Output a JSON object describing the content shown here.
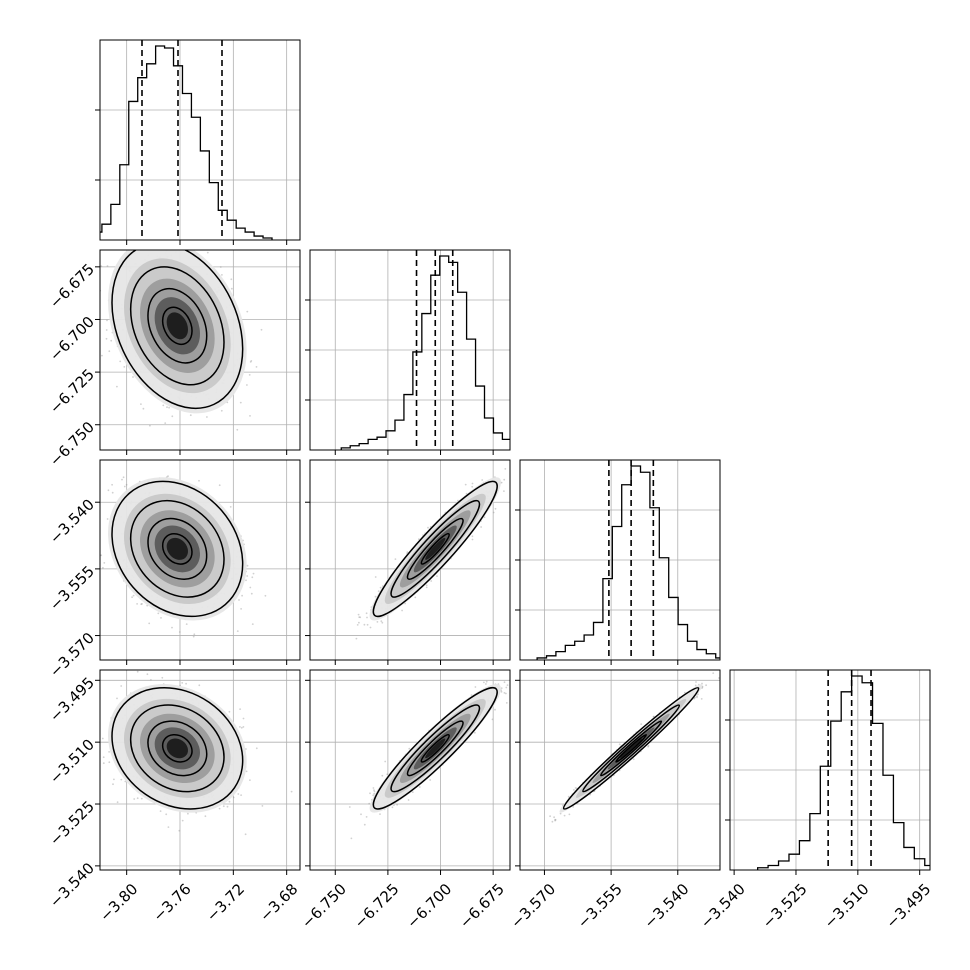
{
  "colors": {
    "ink": "#000000",
    "grid": "#b0b0b0",
    "points": "#9a9a9a"
  },
  "chart_data": {
    "type": "corner",
    "parameters": 4,
    "grid": true,
    "axes": [
      {
        "range": [
          -3.82,
          -3.67
        ],
        "ticks": [
          -3.8,
          -3.76,
          -3.72,
          -3.68
        ],
        "tick_labels": [
          "−3.80",
          "−3.76",
          "−3.72",
          "−3.68"
        ]
      },
      {
        "range": [
          -6.762,
          -6.667
        ],
        "ticks": [
          -6.75,
          -6.725,
          -6.7,
          -6.675
        ],
        "tick_labels": [
          "−6.750",
          "−6.725",
          "−6.700",
          "−6.675"
        ]
      },
      {
        "range": [
          -3.5755,
          -3.5305
        ],
        "ticks": [
          -3.57,
          -3.555,
          -3.54
        ],
        "tick_labels": [
          "−3.570",
          "−3.555",
          "−3.540"
        ]
      },
      {
        "range": [
          -3.541,
          -3.4925
        ],
        "ticks": [
          -3.54,
          -3.525,
          -3.51,
          -3.495
        ],
        "tick_labels": [
          "−3.540",
          "−3.525",
          "−3.510",
          "−3.495"
        ]
      }
    ],
    "histograms": [
      {
        "param": 0,
        "quantiles": [
          -3.7885,
          -3.7615,
          -3.7285
        ],
        "density_yticks": [
          0.3,
          0.65
        ],
        "counts": [
          2,
          4,
          8,
          18,
          38,
          70,
          82,
          89,
          98,
          97,
          88,
          74,
          62,
          45,
          29,
          15,
          10,
          6,
          4,
          2,
          1
        ]
      },
      {
        "param": 1,
        "quantiles": [
          -6.7114,
          -6.7025,
          -6.6942
        ],
        "density_yticks": [
          0.25,
          0.5,
          0.75
        ],
        "counts": [
          1,
          2,
          3,
          5,
          6,
          9,
          14,
          26,
          46,
          64,
          82,
          91,
          88,
          74,
          52,
          30,
          15,
          8,
          5,
          2,
          1
        ]
      },
      {
        "param": 2,
        "quantiles": [
          -3.5555,
          -3.5505,
          -3.5455
        ],
        "density_yticks": [
          0.25,
          0.5,
          0.75
        ],
        "counts": [
          1,
          2,
          4,
          7,
          9,
          12,
          18,
          39,
          64,
          84,
          93,
          90,
          73,
          49,
          30,
          17,
          9,
          5,
          3,
          1
        ]
      },
      {
        "param": 3,
        "quantiles": [
          -3.5172,
          -3.5115,
          -3.5068
        ],
        "density_yticks": [
          0.25,
          0.5,
          0.75
        ],
        "counts": [
          1,
          2,
          4,
          7,
          13,
          25,
          46,
          66,
          79,
          86,
          83,
          65,
          42,
          21,
          10,
          5,
          2,
          1
        ]
      }
    ],
    "pairs": [
      {
        "x": 0,
        "y": 1,
        "center": [
          -3.762,
          -6.703
        ],
        "sd": [
          0.02,
          0.016
        ],
        "corr": -0.28
      },
      {
        "x": 0,
        "y": 2,
        "center": [
          -3.762,
          -3.5505
        ],
        "sd": [
          0.02,
          0.0062
        ],
        "corr": -0.22
      },
      {
        "x": 0,
        "y": 3,
        "center": [
          -3.762,
          -3.5115
        ],
        "sd": [
          0.02,
          0.006
        ],
        "corr": -0.2
      },
      {
        "x": 1,
        "y": 2,
        "center": [
          -6.7025,
          -3.5505
        ],
        "sd": [
          0.012,
          0.0062
        ],
        "corr": 0.93
      },
      {
        "x": 1,
        "y": 3,
        "center": [
          -6.7025,
          -3.5115
        ],
        "sd": [
          0.012,
          0.006
        ],
        "corr": 0.93
      },
      {
        "x": 2,
        "y": 3,
        "center": [
          -3.5505,
          -3.5115
        ],
        "sd": [
          0.0062,
          0.006
        ],
        "corr": 0.985
      }
    ]
  }
}
